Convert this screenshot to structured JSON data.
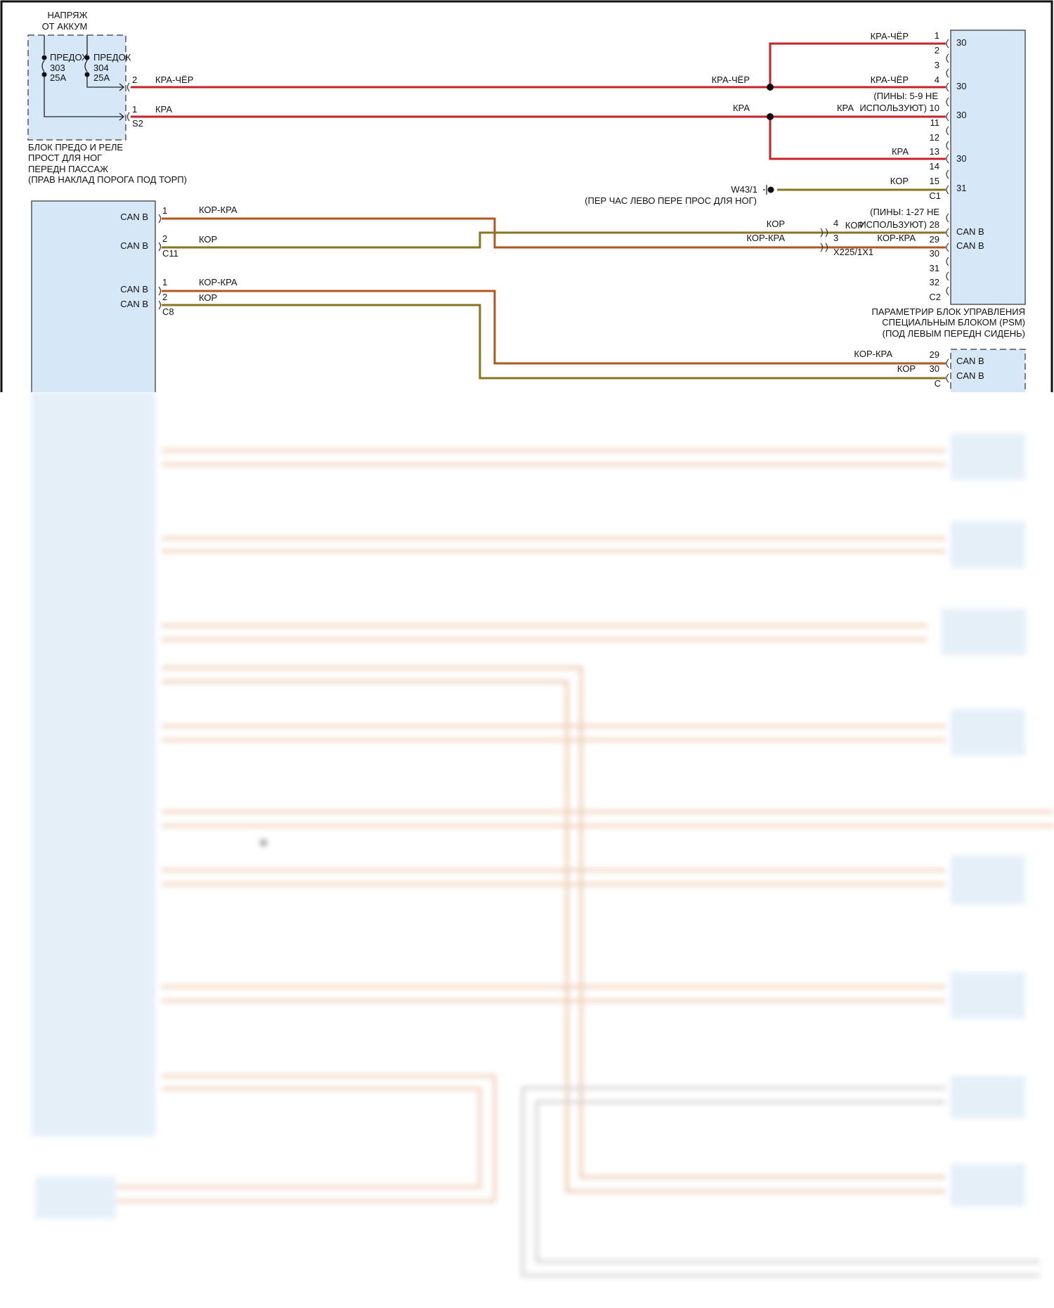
{
  "colors": {
    "module_fill": "#d6e8f8",
    "wire_red": "#c8202a",
    "wire_brown_red": "#b4541e",
    "wire_brown": "#8a7420"
  },
  "power": {
    "line1": "НАПРЯЖ",
    "line2": "ОТ АККУМ"
  },
  "fuse_box": {
    "fuse1": {
      "label": "ПРЕДОХ",
      "number": "303",
      "rating": "25A"
    },
    "fuse2": {
      "label": "ПРЕДОК",
      "number": "304",
      "rating": "25A"
    },
    "connector": "S2",
    "pins": [
      "2",
      "1"
    ],
    "caption": [
      "БЛОК ПРЕДО И РЕЛЕ",
      "ПРОСТ ДЛЯ НОГ",
      "ПЕРЕДН ПАССАЖ",
      "(ПРАВ НАКЛАД ПОРОГА ПОД ТОРП)"
    ]
  },
  "wires": {
    "red_black": "КРА-ЧЁР",
    "red": "КРА",
    "brown": "КОР",
    "brown_red": "КОР-КРА"
  },
  "ground": {
    "id": "W43/1",
    "location": "(ПЕР ЧАС ЛЕВО ПЕРЕ ПРОС ДЛЯ НОГ)"
  },
  "psm": {
    "c1_pins": [
      "1",
      "2",
      "3",
      "4",
      "(ПИНЫ: 5-9 НЕ",
      "ИСПОЛЬЗУЮТ) 10",
      "11",
      "12",
      "13",
      "14",
      "15",
      "C1"
    ],
    "c1_overlap_label": "КРА",
    "c2_pins": [
      "(ПИНЫ: 1-27 НЕ",
      "ИСПОЛЬЗУЮТ) 28",
      "29",
      "30",
      "31",
      "32",
      "C2"
    ],
    "c2_overlap_label": "КОР",
    "terminals": [
      "30",
      "30",
      "30",
      "30",
      "31",
      "CAN B",
      "CAN B"
    ],
    "caption": [
      "ПАРАМЕТРИР БЛОК УПРАВЛЕНИЯ",
      "СПЕЦИАЛЬНЫМ БЛОКОМ (PSM)",
      "(ПОД ЛЕВЫМ ПЕРЕДН СИДЕНЬ)"
    ]
  },
  "inline_connector": {
    "id": "X225/1X1",
    "pins": [
      "4",
      "3"
    ]
  },
  "gateway": {
    "can_labels": [
      "CAN B",
      "CAN B",
      "CAN B",
      "CAN B"
    ],
    "c11": {
      "pins": [
        "1",
        "2"
      ],
      "name": "C11"
    },
    "c8": {
      "pins": [
        "1",
        "2"
      ],
      "name": "C8"
    }
  },
  "module2": {
    "pins": [
      "29",
      "30",
      "C"
    ],
    "terminals": [
      "CAN B",
      "CAN B"
    ]
  }
}
